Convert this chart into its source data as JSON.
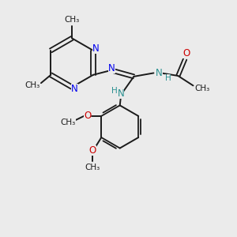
{
  "bg_color": "#ebebeb",
  "bond_color": "#1a1a1a",
  "N_color": "#0000ee",
  "O_color": "#cc0000",
  "H_color": "#2a9090",
  "figsize": [
    3.0,
    3.0
  ],
  "dpi": 100,
  "xlim": [
    0,
    10
  ],
  "ylim": [
    0,
    10
  ]
}
